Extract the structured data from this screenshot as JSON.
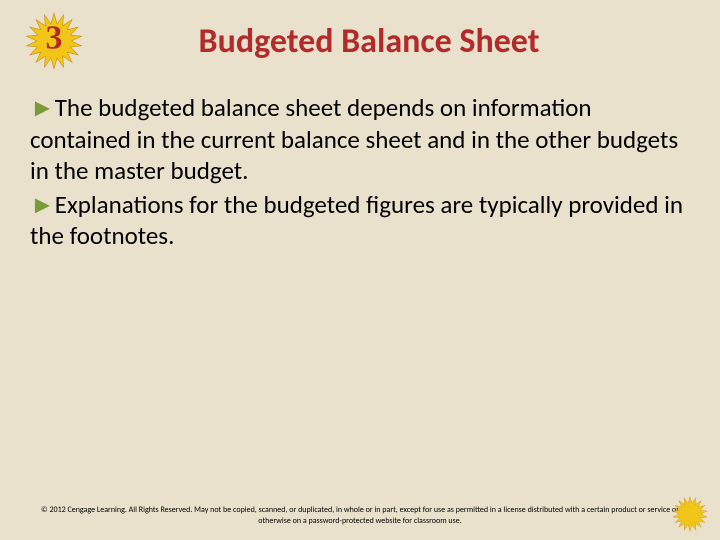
{
  "colors": {
    "slide_bg": "#e9e1cb",
    "starburst_fill": "#f2c619",
    "starburst_stroke": "#c48a0f",
    "number_color": "#b22a2a",
    "title_color": "#b22a2a",
    "text_color": "#000000",
    "arrow_color": "#7a9a3b",
    "footer_color": "#000000"
  },
  "header": {
    "number": "3",
    "title": "Budgeted Balance Sheet"
  },
  "bullets": [
    {
      "text": "The budgeted balance sheet depends on information contained in the current balance sheet and in the other budgets in the master budget."
    },
    {
      "text": "Explanations for the budgeted figures are typically provided in the footnotes."
    }
  ],
  "footer": {
    "text": "© 2012 Cengage Learning. All Rights Reserved. May not be copied, scanned, or duplicated, in whole or in part, except for use as permitted in a license distributed with a certain product or service or otherwise on a password-protected website for classroom use."
  }
}
